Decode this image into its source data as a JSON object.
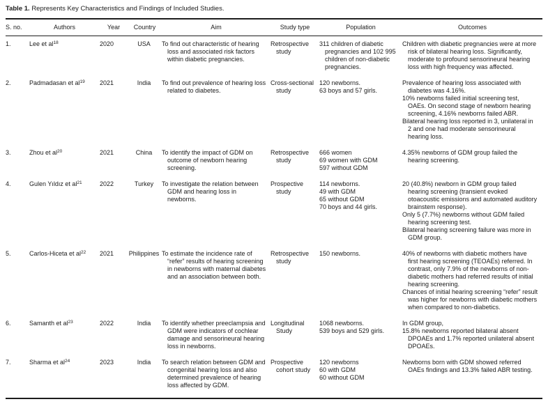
{
  "caption": {
    "label": "Table 1.",
    "text": "Represents Key Characteristics and Findings of Included Studies."
  },
  "table": {
    "columns": [
      "S. no.",
      "Authors",
      "Year",
      "Country",
      "Aim",
      "Study type",
      "Population",
      "Outcomes"
    ],
    "rows": [
      {
        "sno": "1.",
        "author": "Lee et al",
        "ref": "18",
        "year": "2020",
        "country": "USA",
        "aim": [
          "To find out characteristic of hearing loss and associated risk factors within diabetic pregnancies."
        ],
        "study_type": [
          "Retrospective study"
        ],
        "population": [
          "311 children of diabetic pregnancies and 102 995 children of non-diabetic pregnancies."
        ],
        "outcomes": [
          "Children with diabetic pregnancies were at more risk of bilateral hearing loss. Significantly, moderate to profound sensorineural hearing loss with high frequency was affected."
        ]
      },
      {
        "sno": "2.",
        "author": "Padmadasan et al",
        "ref": "19",
        "year": "2021",
        "country": "India",
        "aim": [
          "To find out prevalence of hearing loss related to diabetes."
        ],
        "study_type": [
          "Cross-sectional study"
        ],
        "population": [
          "120 newborns.",
          "63 boys and 57 girls."
        ],
        "outcomes": [
          "Prevalence of hearing loss associated with diabetes was 4.16%.",
          "10% newborns failed initial screening test, OAEs. On second stage of newborn hearing screening, 4.16% newborns failed ABR.",
          "Bilateral hearing loss reported in 3, unilateral in 2 and one had moderate sensorineural hearing loss."
        ]
      },
      {
        "sno": "3.",
        "author": "Zhou et al",
        "ref": "20",
        "year": "2021",
        "country": "China",
        "aim": [
          "To identify the impact of GDM on outcome of newborn hearing screening."
        ],
        "study_type": [
          "Retrospective study"
        ],
        "population": [
          "666 women",
          "69 women with GDM",
          "597 without GDM"
        ],
        "outcomes": [
          "4.35% newborns of GDM group failed the hearing screening."
        ]
      },
      {
        "sno": "4.",
        "author": "Gulen Yıldız et al",
        "ref": "21",
        "year": "2022",
        "country": "Turkey",
        "aim": [
          "To investigate the relation between GDM and hearing loss in newborns."
        ],
        "study_type": [
          "Prospective study"
        ],
        "population": [
          "114 newborns.",
          "49 with GDM",
          "65 without GDM",
          "70 boys and 44 girls."
        ],
        "outcomes": [
          "20 (40.8%) newborn in GDM group failed hearing screening (transient evoked otoacoustic emissions and automated auditory brainstem response).",
          "Only 5 (7.7%) newborns without GDM failed hearing screening test.",
          "Bilateral hearing screening failure was more in GDM group."
        ]
      },
      {
        "sno": "5.",
        "author": "Carlos-Hiceta et al",
        "ref": "22",
        "year": "2021",
        "country": "Philippines",
        "aim": [
          "To estimate the incidence rate of “refer” results of hearing screening in newborns with maternal diabetes and an association between both."
        ],
        "study_type": [
          "Retrospective study"
        ],
        "population": [
          "150 newborns."
        ],
        "outcomes": [
          "40% of newborns with diabetic mothers have first hearing screening (TEOAEs) referred. In contrast, only 7.9% of the newborns of non-diabetic mothers had referred results of initial hearing screening.",
          "Chances of initial hearing screening “refer” result was higher for newborns with diabetic mothers when compared to non-diabetics."
        ]
      },
      {
        "sno": "6.",
        "author": "Samanth et al",
        "ref": "23",
        "year": "2022",
        "country": "India",
        "aim": [
          "To identify whether preeclampsia and GDM were indicators of cochlear damage and sensorineural hearing loss in newborns."
        ],
        "study_type": [
          "Longitudinal Study"
        ],
        "population": [
          "1068 newborns.",
          "539 boys and 529 girls."
        ],
        "outcomes": [
          "In GDM group,",
          "15.8% newborns reported bilateral absent DPOAEs and 1.7% reported unilateral absent DPOAEs."
        ]
      },
      {
        "sno": "7.",
        "author": "Sharma et al",
        "ref": "24",
        "year": "2023",
        "country": "India",
        "aim": [
          "To search relation between GDM and congenital hearing loss and also determined prevalence of hearing loss affected by GDM."
        ],
        "study_type": [
          "Prospective cohort study"
        ],
        "population": [
          "120 newborns",
          "60 with GDM",
          "60 without GDM"
        ],
        "outcomes": [
          "Newborns born with GDM showed referred OAEs findings and 13.3% failed ABR testing."
        ]
      }
    ]
  }
}
